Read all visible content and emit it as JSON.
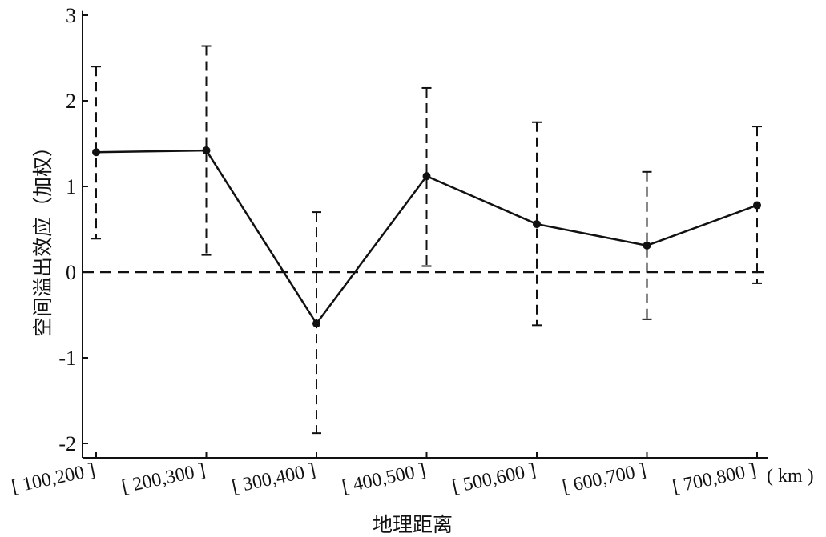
{
  "chart_data": {
    "type": "line",
    "categories": [
      "[ 100,200 ]",
      "[ 200,300 ]",
      "[ 300,400 ]",
      "[ 400,500 ]",
      "[ 500,600 ]",
      "[ 600,700 ]",
      "[ 700,800 ]"
    ],
    "unit_label": "( km )",
    "series": [
      {
        "values": [
          1.4,
          1.42,
          -0.6,
          1.12,
          0.56,
          0.31,
          0.78
        ],
        "error_upper": [
          2.4,
          2.64,
          0.7,
          2.15,
          1.75,
          1.17,
          1.7
        ],
        "error_lower": [
          0.39,
          0.2,
          -1.88,
          0.07,
          -0.62,
          -0.55,
          -0.13
        ]
      }
    ],
    "xlabel": "地理距离",
    "ylabel": "空间溢出效应（加权）",
    "ylim": [
      -2.15,
      3.05
    ],
    "yticks": [
      3,
      2,
      1,
      0,
      -1,
      -2
    ],
    "ytick_labels": [
      "3",
      "2",
      "1",
      "0",
      "-1",
      "-2"
    ],
    "reference_line": 0,
    "grid": false,
    "colors": {
      "line": "#111111",
      "reference": "#111111"
    }
  }
}
